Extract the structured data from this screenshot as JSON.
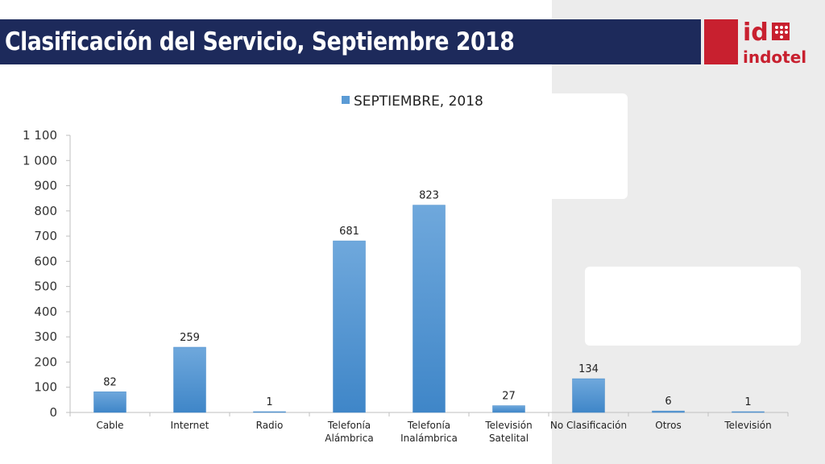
{
  "slide": {
    "title": "Clasificación del Servicio, Septiembre 2018",
    "title_bar_color": "#1d2a5b"
  },
  "logo": {
    "text_top": "id",
    "text_bottom": "indotel",
    "color": "#c8202f"
  },
  "chart_data": {
    "type": "bar",
    "categories": [
      "Cable",
      "Internet",
      "Radio",
      "Telefonía Alámbrica",
      "Telefonía Inalámbrica",
      "Televisión Satelital",
      "No Clasificación",
      "Otros",
      "Televisión"
    ],
    "category_lines": [
      [
        "Cable"
      ],
      [
        "Internet"
      ],
      [
        "Radio"
      ],
      [
        "Telefonía",
        "Alámbrica"
      ],
      [
        "Telefonía",
        "Inalámbrica"
      ],
      [
        "Televisión",
        "Satelital"
      ],
      [
        "No Clasificación"
      ],
      [
        "Otros"
      ],
      [
        "Televisión"
      ]
    ],
    "series": [
      {
        "name": "SEPTIEMBRE, 2018",
        "values": [
          82,
          259,
          1,
          681,
          823,
          27,
          134,
          6,
          1
        ],
        "color": "#5b9bd5"
      }
    ],
    "ylim": [
      0,
      1100
    ],
    "yticks": [
      0,
      100,
      200,
      300,
      400,
      500,
      600,
      700,
      800,
      900,
      1000,
      1100
    ],
    "ytick_labels": [
      "0",
      "100",
      "200",
      "300",
      "400",
      "500",
      "600",
      "700",
      "800",
      "900",
      "1 000",
      "1 100"
    ],
    "legend_position": "top",
    "grid": false,
    "data_labels": true
  }
}
